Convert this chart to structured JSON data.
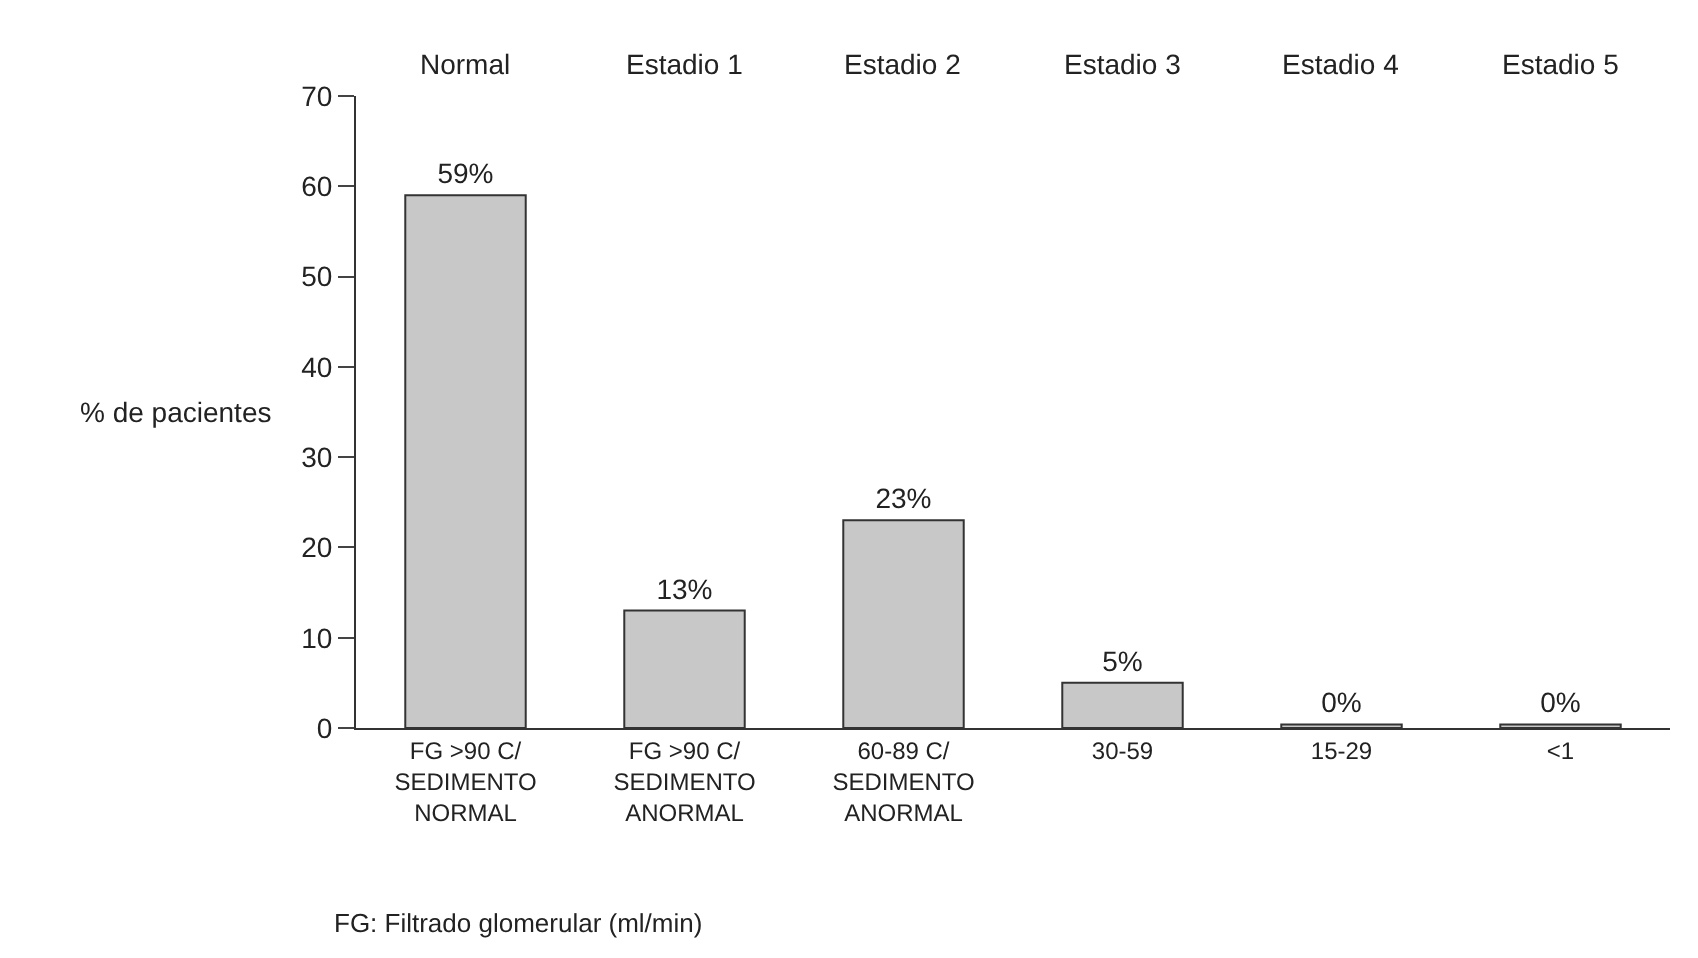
{
  "chart_data": {
    "type": "bar",
    "ylabel": "% de pacientes",
    "categories": [
      "FG >90 C/\nSEDIMENTO\nNORMAL",
      "FG >90 C/\nSEDIMENTO\nANORMAL",
      "60-89 C/\nSEDIMENTO\nANORMAL",
      "30-59",
      "15-29",
      "<1"
    ],
    "values": [
      59,
      13,
      23,
      5,
      0.4,
      0.4
    ],
    "value_labels": [
      "59%",
      "13%",
      "23%",
      "5%",
      "0%",
      "0%"
    ],
    "color": "#c8c8c8",
    "ylim": [
      0,
      70
    ],
    "yticks": [
      0,
      10,
      20,
      30,
      40,
      50,
      60,
      70
    ],
    "annotations": [
      "Normal",
      "Estadio 1",
      "Estadio 2",
      "Estadio 3",
      "Estadio 4",
      "Estadio 5",
      "FG: Filtrado glomerular (ml/min)"
    ]
  }
}
